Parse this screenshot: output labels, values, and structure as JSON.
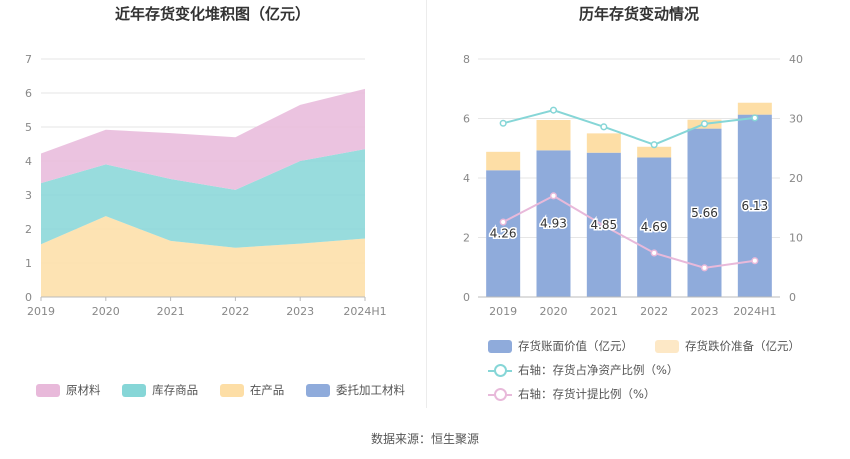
{
  "left_chart": {
    "title": "近年存货变化堆积图（亿元）",
    "legend": [
      {
        "label": "原材料",
        "color": "#e8b9da"
      },
      {
        "label": "库存商品",
        "color": "#86d6d7"
      },
      {
        "label": "在产品",
        "color": "#fddea6"
      },
      {
        "label": "委托加工材料",
        "color": "#8fabdb"
      }
    ]
  },
  "right_chart": {
    "title": "历年存货变动情况",
    "legend": [
      {
        "label": "存货账面价值（亿元）",
        "color": "#8fabdb"
      },
      {
        "label": "存货跌价准备（亿元）",
        "color": "#fddea6"
      },
      {
        "label": "右轴：存货占净资产比例（%）",
        "color": "#86d6d7"
      },
      {
        "label": "右轴：存货计提比例（%）",
        "color": "#e8b9da"
      }
    ]
  },
  "source": "数据来源：恒生聚源",
  "chart_data": [
    {
      "type": "area",
      "stacked": true,
      "title": "近年存货变化堆积图（亿元）",
      "categories": [
        "2019",
        "2020",
        "2021",
        "2022",
        "2023",
        "2024H1"
      ],
      "ylim": [
        0,
        7
      ],
      "yticks": [
        0,
        1,
        2,
        3,
        4,
        5,
        6,
        7
      ],
      "grid": true,
      "legend_position": "bottom",
      "series": [
        {
          "name": "委托加工材料",
          "color": "#8fabdb",
          "values": [
            0,
            0,
            0,
            0,
            0,
            0
          ]
        },
        {
          "name": "在产品",
          "color": "#fddea6",
          "values": [
            1.55,
            2.38,
            1.65,
            1.45,
            1.57,
            1.72
          ]
        },
        {
          "name": "库存商品",
          "color": "#86d6d7",
          "values": [
            1.8,
            1.52,
            1.82,
            1.7,
            2.43,
            2.63
          ]
        },
        {
          "name": "原材料",
          "color": "#e8b9da",
          "values": [
            0.87,
            1.02,
            1.35,
            1.55,
            1.65,
            1.77
          ]
        }
      ]
    },
    {
      "type": "bar",
      "stacked": true,
      "title": "历年存货变动情况",
      "categories": [
        "2019",
        "2020",
        "2021",
        "2022",
        "2023",
        "2024H1"
      ],
      "ylim": [
        0,
        8
      ],
      "yticks": [
        0,
        2,
        4,
        6,
        8
      ],
      "y2lim": [
        0,
        40
      ],
      "y2ticks": [
        0,
        10,
        20,
        30,
        40
      ],
      "grid": true,
      "legend_position": "bottom",
      "series": [
        {
          "name": "存货账面价值（亿元）",
          "type": "bar",
          "color": "#8fabdb",
          "values": [
            4.26,
            4.93,
            4.85,
            4.69,
            5.66,
            6.13
          ],
          "labels": [
            "4.26",
            "4.93",
            "4.85",
            "4.69",
            "5.66",
            "6.13"
          ]
        },
        {
          "name": "存货跌价准备（亿元）",
          "type": "bar",
          "color": "#fddea6",
          "values": [
            0.62,
            1.02,
            0.65,
            0.36,
            0.3,
            0.4
          ]
        },
        {
          "name": "右轴：存货占净资产比例（%）",
          "type": "line",
          "axis": "right",
          "color": "#86d6d7",
          "values": [
            29.2,
            31.4,
            28.6,
            25.6,
            29.1,
            30.1
          ]
        },
        {
          "name": "右轴：存货计提比例（%）",
          "type": "line",
          "axis": "right",
          "color": "#e8b9da",
          "values": [
            12.6,
            17.0,
            12.0,
            7.4,
            4.9,
            6.1
          ]
        }
      ]
    }
  ]
}
